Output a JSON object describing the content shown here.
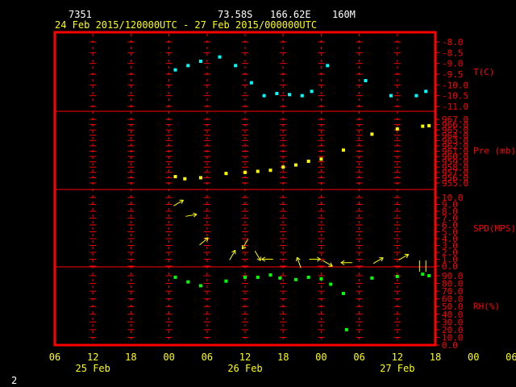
{
  "header": {
    "station": "7351",
    "location": "73.58S   166.62E",
    "elevation": "160M",
    "period": "24 Feb 2015/120000UTC - 27 Feb 2015/000000UTC"
  },
  "footer": {
    "page": "2"
  },
  "colors": {
    "background": "#000000",
    "frame": "#ff0000",
    "header_text": "#ffffff",
    "axis_text": "#ffff00",
    "panel_label": "#ff0000",
    "temperature": "#00ffff",
    "pressure": "#ffff00",
    "wind": "#ffff00",
    "humidity": "#00ff00"
  },
  "chart_data": {
    "type": "scatter",
    "x_hours_range": [
      -6,
      54
    ],
    "x_ticks": [
      "06",
      "12",
      "18",
      "00",
      "06",
      "12",
      "18",
      "00",
      "06",
      "12",
      "18",
      "00",
      "06"
    ],
    "date_labels": [
      {
        "text": "25 Feb",
        "hour": 0
      },
      {
        "text": "26 Feb",
        "hour": 24
      },
      {
        "text": "27 Feb",
        "hour": 48
      }
    ],
    "panels": [
      {
        "key": "temperature",
        "label": "T(C)",
        "ylim": [
          -11.0,
          -8.0
        ],
        "ticks": [
          "-8.0",
          "-8.5",
          "-9.0",
          "-9.5",
          "-10.0",
          "-10.5",
          "-11.0"
        ],
        "points": [
          {
            "hour": 13,
            "value": -9.3
          },
          {
            "hour": 15,
            "value": -9.1
          },
          {
            "hour": 17,
            "value": -8.9
          },
          {
            "hour": 20,
            "value": -8.7
          },
          {
            "hour": 22.5,
            "value": -9.1
          },
          {
            "hour": 25,
            "value": -9.9
          },
          {
            "hour": 27,
            "value": -10.5
          },
          {
            "hour": 29,
            "value": -10.4
          },
          {
            "hour": 31,
            "value": -10.45
          },
          {
            "hour": 33,
            "value": -10.5
          },
          {
            "hour": 34.5,
            "value": -10.3
          },
          {
            "hour": 37,
            "value": -9.1
          },
          {
            "hour": 43,
            "value": -9.8
          },
          {
            "hour": 47,
            "value": -10.5
          },
          {
            "hour": 51,
            "value": -10.5
          },
          {
            "hour": 52.5,
            "value": -10.3
          }
        ]
      },
      {
        "key": "pressure",
        "label": "Pre (mb)",
        "ylim": [
          955.0,
          967.0
        ],
        "ticks": [
          "967.0",
          "966.0",
          "965.0",
          "964.0",
          "963.0",
          "962.0",
          "961.0",
          "960.0",
          "959.0",
          "958.0",
          "957.0",
          "956.0",
          "955.0"
        ],
        "points": [
          {
            "hour": 13,
            "value": 956.2
          },
          {
            "hour": 14.5,
            "value": 955.8
          },
          {
            "hour": 17,
            "value": 956.0
          },
          {
            "hour": 21,
            "value": 956.8
          },
          {
            "hour": 24,
            "value": 957.0
          },
          {
            "hour": 26,
            "value": 957.2
          },
          {
            "hour": 28,
            "value": 957.4
          },
          {
            "hour": 30,
            "value": 958.0
          },
          {
            "hour": 32,
            "value": 958.4
          },
          {
            "hour": 34,
            "value": 959.1
          },
          {
            "hour": 36,
            "value": 959.5
          },
          {
            "hour": 39.5,
            "value": 961.2
          },
          {
            "hour": 44,
            "value": 964.2
          },
          {
            "hour": 48,
            "value": 965.2
          },
          {
            "hour": 52,
            "value": 965.7
          },
          {
            "hour": 53,
            "value": 965.8
          }
        ]
      },
      {
        "key": "wind",
        "label": "SPD(MPS)",
        "ylim": [
          0.0,
          10.0
        ],
        "ticks": [
          "10.0",
          "9.0",
          "8.0",
          "7.0",
          "6.0",
          "5.0",
          "4.0",
          "3.0",
          "2.0",
          "1.0",
          "0.0"
        ],
        "points": [
          {
            "hour": 13.5,
            "value": 9.2,
            "dir": 60
          },
          {
            "hour": 15.5,
            "value": 7.4,
            "dir": 80
          },
          {
            "hour": 17.5,
            "value": 3.6,
            "dir": 50
          },
          {
            "hour": 22,
            "value": 1.6,
            "dir": 30
          },
          {
            "hour": 24,
            "value": 3.2,
            "dir": 210
          },
          {
            "hour": 26,
            "value": 1.5,
            "dir": 150
          },
          {
            "hour": 27.5,
            "value": 1.0,
            "dir": 270
          },
          {
            "hour": 32.5,
            "value": 0.5,
            "dir": 340
          },
          {
            "hour": 35,
            "value": 1.0,
            "dir": 90
          },
          {
            "hour": 37,
            "value": 0.4,
            "dir": 120
          },
          {
            "hour": 40,
            "value": 0.5,
            "dir": 270
          },
          {
            "hour": 45,
            "value": 0.8,
            "dir": 60
          },
          {
            "hour": 49,
            "value": 1.3,
            "dir": 60
          },
          {
            "hour": 51.5,
            "value": 0.0,
            "dir": 0
          },
          {
            "hour": 52.5,
            "value": 0.0,
            "dir": 0
          }
        ]
      },
      {
        "key": "humidity",
        "label": "RH(%)",
        "ylim": [
          0.0,
          90.0
        ],
        "ticks": [
          "90.0",
          "80.0",
          "70.0",
          "60.0",
          "50.0",
          "40.0",
          "30.0",
          "20.0",
          "10.0",
          "0.0"
        ],
        "points": [
          {
            "hour": 13,
            "value": 88
          },
          {
            "hour": 15,
            "value": 82
          },
          {
            "hour": 17,
            "value": 77
          },
          {
            "hour": 21,
            "value": 83
          },
          {
            "hour": 24,
            "value": 88
          },
          {
            "hour": 26,
            "value": 88
          },
          {
            "hour": 28,
            "value": 91
          },
          {
            "hour": 29.5,
            "value": 87
          },
          {
            "hour": 32,
            "value": 85
          },
          {
            "hour": 34,
            "value": 88
          },
          {
            "hour": 36,
            "value": 86
          },
          {
            "hour": 37.5,
            "value": 79
          },
          {
            "hour": 39.5,
            "value": 67
          },
          {
            "hour": 40,
            "value": 20
          },
          {
            "hour": 44,
            "value": 87
          },
          {
            "hour": 48,
            "value": 89
          },
          {
            "hour": 52,
            "value": 92
          },
          {
            "hour": 53,
            "value": 90
          }
        ]
      }
    ]
  }
}
